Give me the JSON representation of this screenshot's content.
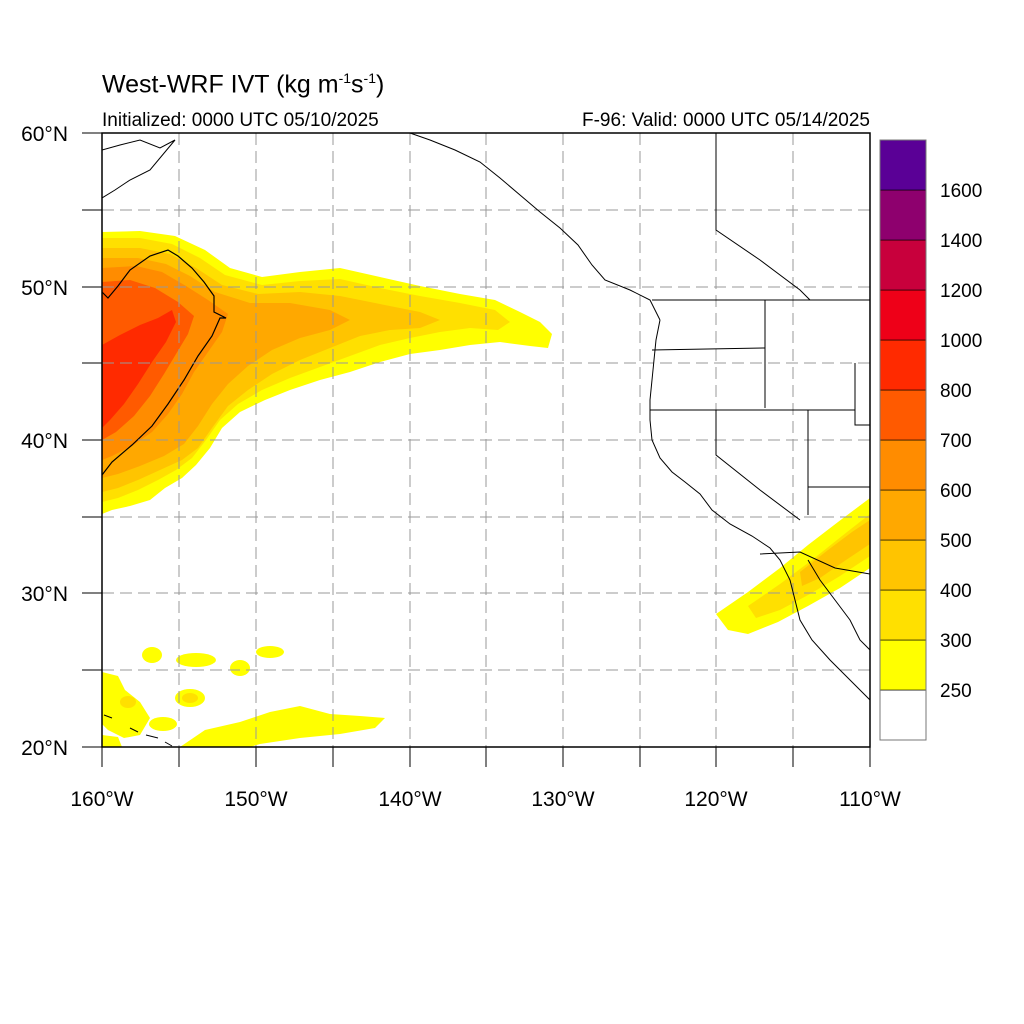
{
  "title": {
    "main": "West-WRF IVT (kg m",
    "sup1": "-1",
    "s": "s",
    "sup2": "-1",
    "close": ")"
  },
  "subtitle": {
    "left": "Initialized: 0000 UTC 05/10/2025",
    "right": "F-96: Valid: 0000 UTC 05/14/2025"
  },
  "axes": {
    "lon_labels": [
      "160°W",
      "150°W",
      "140°W",
      "130°W",
      "120°W",
      "110°W"
    ],
    "lat_labels": [
      "60°N",
      "50°N",
      "40°N",
      "30°N",
      "20°N"
    ],
    "lon_range": [
      -160,
      -110
    ],
    "lat_range": [
      20,
      60
    ],
    "grid": "dashed every 5 degrees"
  },
  "colorbar": {
    "levels": [
      "250",
      "300",
      "400",
      "500",
      "600",
      "700",
      "800",
      "1000",
      "1200",
      "1400",
      "1600"
    ],
    "colors": [
      "#ffffff",
      "#ffff00",
      "#ffe000",
      "#ffc400",
      "#ffa800",
      "#ff8c00",
      "#ff5a00",
      "#ff2a00",
      "#ee0018",
      "#c8003c",
      "#8e006e",
      "#5a0096"
    ]
  },
  "colors": {
    "ivt_250": "#ffff00",
    "ivt_300": "#ffe000",
    "ivt_400": "#ffc400",
    "ivt_500": "#ffa800",
    "ivt_600": "#ff8c00",
    "ivt_700": "#ff5a00",
    "ivt_800": "#ff2a00"
  }
}
